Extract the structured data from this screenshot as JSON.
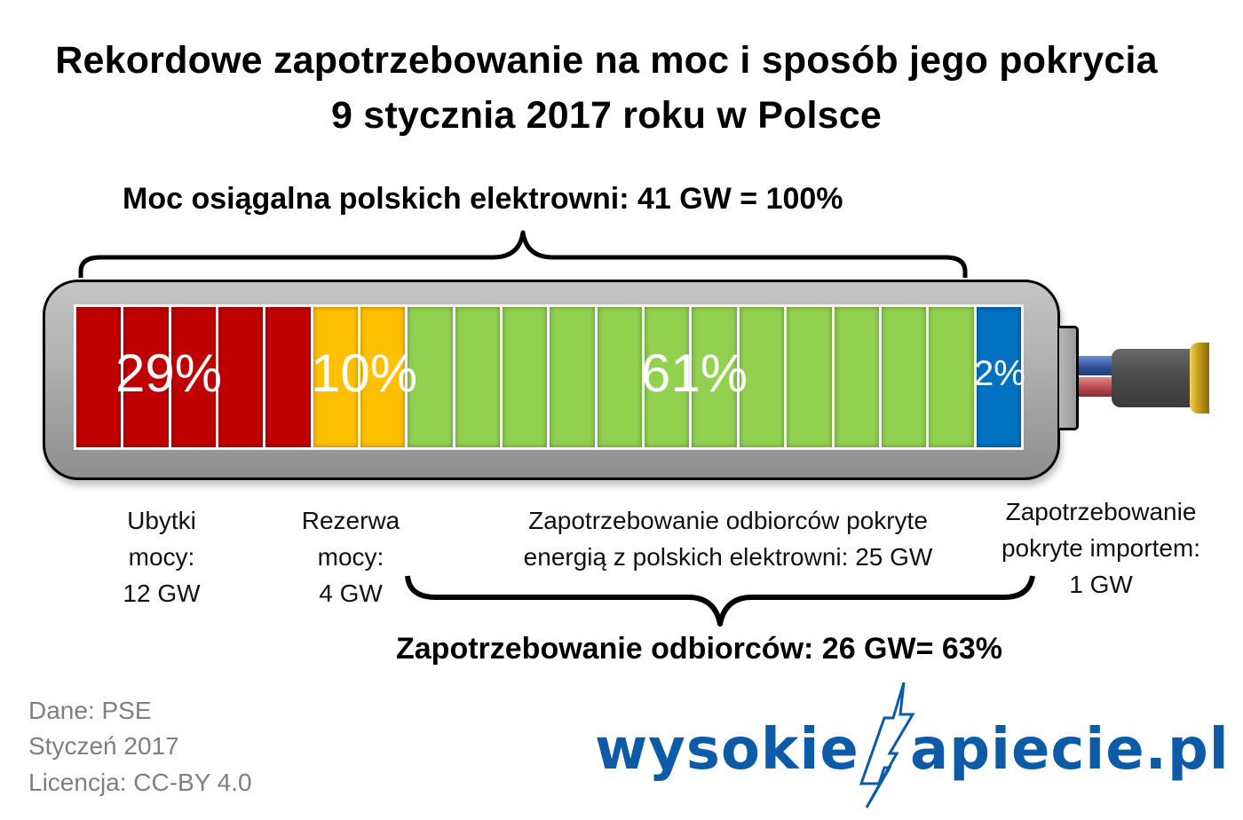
{
  "title": {
    "line1": "Rekordowe zapotrzebowanie na moc i sposób jego pokrycia",
    "line2": "9 stycznia 2017 roku w Polsce"
  },
  "top_label": "Moc osiągalna polskich elektrowni: 41 GW = 100%",
  "bottom_label": "Zapotrzebowanie odbiorców: 26 GW= 63%",
  "battery": {
    "cell_count": 20,
    "segments": [
      {
        "key": "ubytki",
        "percent_label": "29%",
        "cells": 5,
        "color": "#c00000"
      },
      {
        "key": "rezerwa",
        "percent_label": "10%",
        "cells": 2,
        "color": "#ffc000"
      },
      {
        "key": "krajowe",
        "percent_label": "61%",
        "cells": 12,
        "color": "#92d050"
      },
      {
        "key": "import",
        "percent_label": "2%",
        "cells": 1,
        "color": "#0070c0"
      }
    ]
  },
  "labels": {
    "ubytki": {
      "line1": "Ubytki",
      "line2": "mocy:",
      "line3": "12 GW"
    },
    "rezerwa": {
      "line1": "Rezerwa",
      "line2": "mocy:",
      "line3": "4 GW"
    },
    "krajowe": {
      "line1": "Zapotrzebowanie odbiorców pokryte",
      "line2": "energią z polskich elektrowni: 25 GW"
    },
    "import": {
      "line1": "Zapotrzebowanie",
      "line2": "pokryte importem:",
      "line3": "1 GW"
    }
  },
  "footer": {
    "source": "Dane: PSE",
    "date": "Styczeń 2017",
    "license": "Licencja: CC-BY 4.0"
  },
  "logo": {
    "left": "wysokie",
    "right": "apiecie.pl",
    "color": "#0d5aa7"
  },
  "chart_data": {
    "type": "bar",
    "orientation": "horizontal-stacked",
    "title": "Rekordowe zapotrzebowanie na moc i sposób jego pokrycia 9 stycznia 2017 roku w Polsce",
    "total_capacity_label": "Moc osiągalna polskich elektrowni: 41 GW = 100%",
    "demand_label": "Zapotrzebowanie odbiorców: 26 GW= 63%",
    "categories": [
      "Ubytki mocy",
      "Rezerwa mocy",
      "Zapotrzebowanie pokryte energią z polskich elektrowni",
      "Zapotrzebowanie pokryte importem"
    ],
    "values_gw": [
      12,
      4,
      25,
      1
    ],
    "values_percent": [
      29,
      10,
      61,
      2
    ],
    "colors": [
      "#c00000",
      "#ffc000",
      "#92d050",
      "#0070c0"
    ],
    "unit": "GW",
    "source": "PSE"
  }
}
